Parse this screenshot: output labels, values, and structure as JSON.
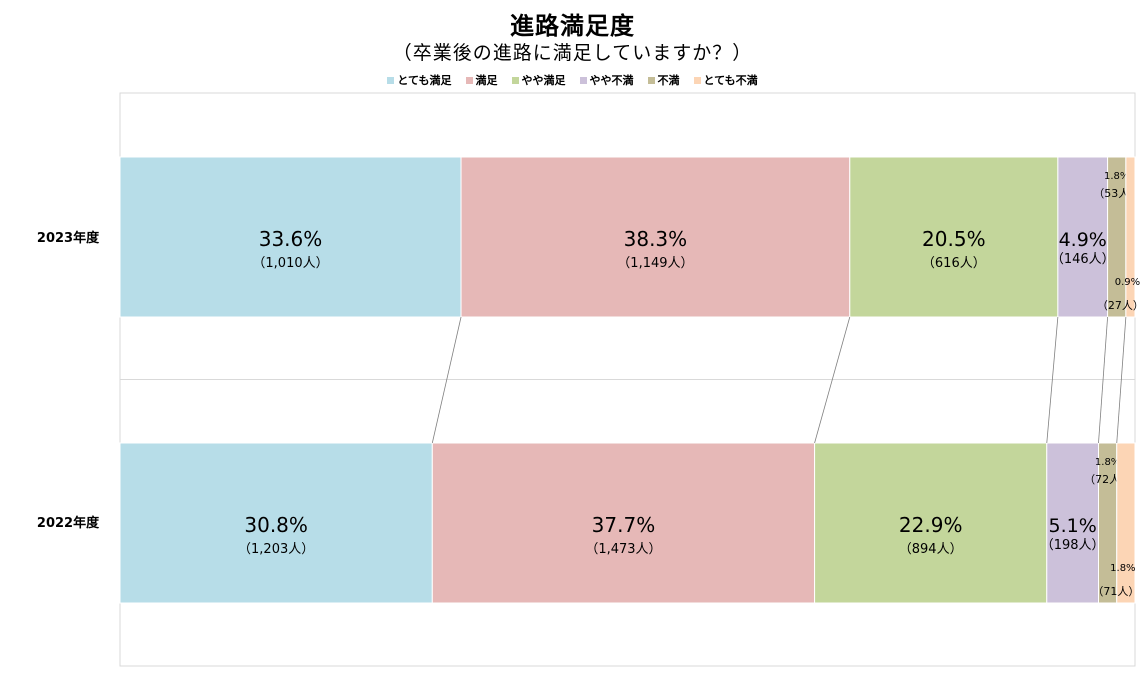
{
  "chart_data": {
    "type": "bar",
    "orientation": "horizontal-stacked-100",
    "title": "進路満足度",
    "subtitle": "（卒業後の進路に満足していますか？）",
    "legend_position": "top",
    "categories": [
      "2023年度",
      "2022年度"
    ],
    "series": [
      {
        "name": "とても満足",
        "color": "#b7dde8",
        "values": [
          33.6,
          30.8
        ],
        "counts": [
          "（1,010人）",
          "（1,203人）"
        ]
      },
      {
        "name": "満足",
        "color": "#e6b8b7",
        "values": [
          38.3,
          37.7
        ],
        "counts": [
          "（1,149人）",
          "（1,473人）"
        ]
      },
      {
        "name": "やや満足",
        "color": "#c3d69b",
        "values": [
          20.5,
          22.9
        ],
        "counts": [
          "（616人）",
          "（894人）"
        ]
      },
      {
        "name": "やや不満",
        "color": "#ccc1da",
        "values": [
          4.9,
          5.1
        ],
        "counts": [
          "（146人）",
          "（198人）"
        ]
      },
      {
        "name": "不満",
        "color": "#c4bd97",
        "values": [
          1.8,
          1.8
        ],
        "counts": [
          "（53人）",
          "（72人）"
        ]
      },
      {
        "name": "とても不満",
        "color": "#fcd5b5",
        "values": [
          0.9,
          1.8
        ],
        "counts": [
          "（27人）",
          "（71人）"
        ]
      }
    ],
    "xlim": [
      0,
      100
    ],
    "series_lines": true
  }
}
